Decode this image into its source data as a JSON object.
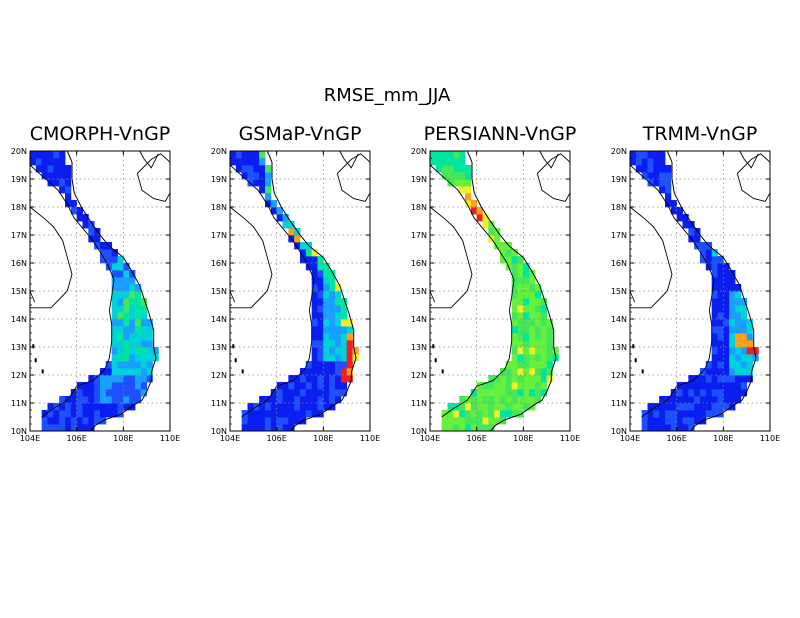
{
  "title": "RMSE_mm_JJA",
  "panels": [
    {
      "title": "CMORPH-VnGP",
      "dominant": "low"
    },
    {
      "title": "GSMaP-VnGP",
      "dominant": "low-coastal-high"
    },
    {
      "title": "PERSIANN-VnGP",
      "dominant": "mid"
    },
    {
      "title": "TRMM-VnGP",
      "dominant": "low-spot-high"
    }
  ],
  "axes": {
    "lat_ticks": [
      "10N",
      "11N",
      "12N",
      "13N",
      "14N",
      "15N",
      "16N",
      "17N",
      "18N",
      "19N",
      "20N"
    ],
    "lon_ticks": [
      "104E",
      "106E",
      "108E",
      "110E"
    ],
    "lat_range": [
      10,
      20
    ],
    "lon_range": [
      104,
      110
    ]
  },
  "colors": {
    "low": "#0a1ef0",
    "low2": "#1e50ff",
    "mid_low": "#19a0ff",
    "cyan": "#00d2dc",
    "teal": "#00e6a0",
    "green": "#64f03c",
    "green2": "#46e65a",
    "yellow": "#f0f028",
    "orange": "#ffa014",
    "red": "#f01e1e"
  }
}
